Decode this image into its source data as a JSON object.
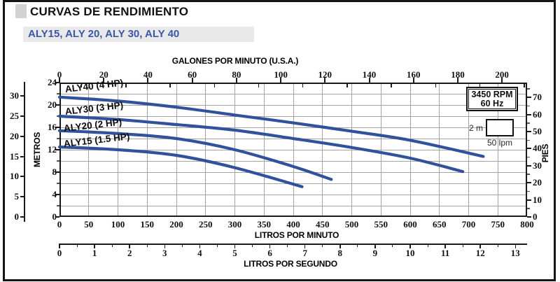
{
  "header": {
    "title": "CURVAS DE RENDIMIENTO",
    "subtitle": "ALY15, ALY 20, ALY 30, ALY 40"
  },
  "chart_data": {
    "type": "line",
    "title": "CURVAS DE RENDIMIENTO — ALY15, ALY 20, ALY 30, ALY 40",
    "axes": {
      "top": {
        "label": "GALONES POR MINUTO (U.S.A.)",
        "ticks": [
          0,
          20,
          40,
          60,
          80,
          100,
          120,
          140,
          160,
          180,
          200
        ],
        "minor_step": 10,
        "lpm_per_unit": 3.7854
      },
      "bottom": {
        "label": "LITROS POR MINUTO",
        "ticks": [
          0,
          50,
          100,
          150,
          200,
          250,
          300,
          350,
          400,
          450,
          500,
          550,
          600,
          650,
          700,
          750,
          800
        ],
        "range": [
          0,
          800
        ]
      },
      "bottom2": {
        "label": "LITROS POR SEGUNDO",
        "ticks": [
          0,
          1,
          2,
          3,
          4,
          5,
          6,
          7,
          8,
          9,
          10,
          11,
          12,
          13
        ],
        "minor_step": 0.5,
        "lpm_per_unit": 60
      },
      "left_inner": {
        "label": "METROS",
        "ticks": [
          0,
          4,
          8,
          12,
          16,
          20,
          24
        ],
        "minor_step": 2,
        "range": [
          0,
          24
        ]
      },
      "left_outer": {
        "label": "",
        "ticks": [
          0,
          5,
          10,
          15,
          20,
          25,
          30
        ]
      },
      "right": {
        "label": "PIES",
        "ticks": [
          0,
          10,
          20,
          30,
          40,
          50,
          60,
          70
        ],
        "minor_step": 5,
        "m_per_unit": 0.3048
      }
    },
    "grid": {
      "x_step_lpm": 50,
      "y_step_m": 2
    },
    "series": [
      {
        "name": "ALY40 (4 HP)",
        "points_lpm_m": [
          [
            0,
            21.4
          ],
          [
            100,
            20.7
          ],
          [
            200,
            19.6
          ],
          [
            300,
            18.2
          ],
          [
            400,
            16.8
          ],
          [
            500,
            15.3
          ],
          [
            600,
            13.7
          ],
          [
            725,
            10.8
          ]
        ]
      },
      {
        "name": "ALY30 (3 HP)",
        "points_lpm_m": [
          [
            0,
            18.0
          ],
          [
            100,
            17.4
          ],
          [
            200,
            16.5
          ],
          [
            300,
            15.5
          ],
          [
            400,
            14.0
          ],
          [
            500,
            12.4
          ],
          [
            600,
            10.5
          ],
          [
            690,
            8.1
          ]
        ]
      },
      {
        "name": "ALY20 (2 HP)",
        "points_lpm_m": [
          [
            0,
            15.4
          ],
          [
            100,
            14.9
          ],
          [
            200,
            14.0
          ],
          [
            300,
            12.0
          ],
          [
            400,
            9.0
          ],
          [
            465,
            6.7
          ]
        ]
      },
      {
        "name": "ALY15 (1.5 HP)",
        "points_lpm_m": [
          [
            0,
            12.5
          ],
          [
            100,
            12.0
          ],
          [
            200,
            11.0
          ],
          [
            300,
            8.8
          ],
          [
            415,
            5.4
          ]
        ]
      }
    ],
    "annotations": {
      "rpm_box": {
        "line1": "3450 RPM",
        "line2": "60 Hz"
      },
      "grid_legend": {
        "height_label": "2 m",
        "width_label": "50 lpm"
      }
    },
    "colors": {
      "curve": "#30519c",
      "grid": "#a4a4a4",
      "frame": "#1a1a1a",
      "subtitle_blue": "#3a57a8",
      "subtitle_bg": "#e9e9e9"
    }
  }
}
